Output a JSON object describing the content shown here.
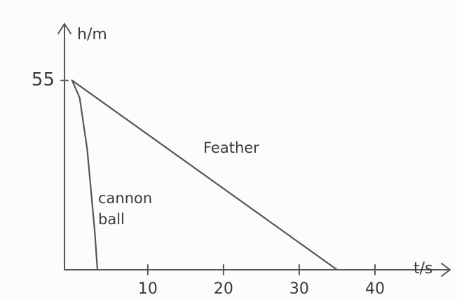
{
  "chart_data": {
    "type": "line",
    "xlabel": "t/s",
    "ylabel": "h/m",
    "xlim": [
      -1,
      50
    ],
    "ylim": [
      0,
      70
    ],
    "xticks": [
      10,
      20,
      30,
      40
    ],
    "yticks": [
      55
    ],
    "series": [
      {
        "name": "Feather",
        "color": "#555555",
        "x": [
          0,
          35
        ],
        "values": [
          55,
          0
        ]
      },
      {
        "name": "cannon ball",
        "color": "#555555",
        "x": [
          0,
          1,
          2,
          3,
          3.35
        ],
        "values": [
          55,
          50,
          35,
          11,
          0
        ]
      }
    ]
  }
}
